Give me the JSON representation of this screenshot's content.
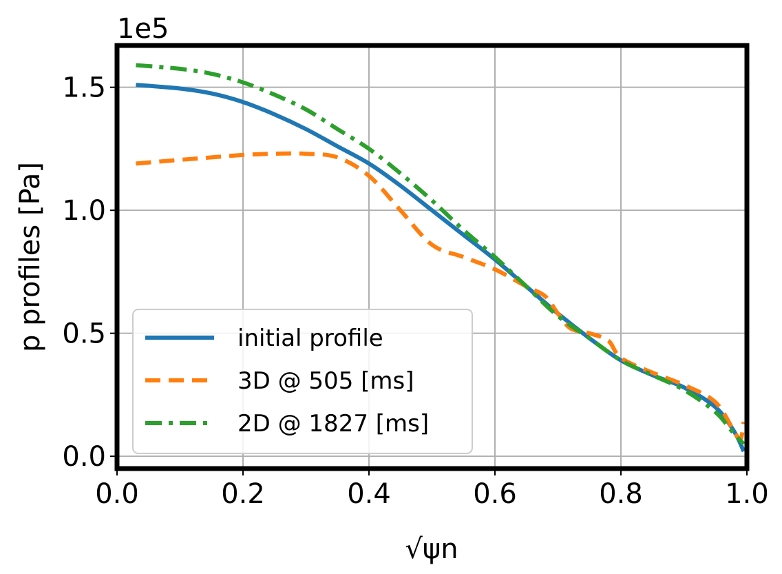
{
  "chart_data": {
    "type": "line",
    "title": "",
    "xlabel": "√ψn",
    "ylabel": "p profiles [Pa]",
    "y_offset_label": "1e5",
    "xlim": [
      0.0,
      1.0
    ],
    "ylim": [
      -0.05,
      1.67
    ],
    "x_ticks": [
      0.0,
      0.2,
      0.4,
      0.6,
      0.8,
      1.0
    ],
    "x_tick_labels": [
      "0.0",
      "0.2",
      "0.4",
      "0.6",
      "0.8",
      "1.0"
    ],
    "y_ticks": [
      0.0,
      0.5,
      1.0,
      1.5
    ],
    "y_tick_labels": [
      "0.0",
      "0.5",
      "1.0",
      "1.5"
    ],
    "y_scale_note": "values in units of 1e5 Pa",
    "grid": true,
    "legend_position": "lower-left",
    "series": [
      {
        "name": "initial profile",
        "color": "#1f77b4",
        "style": "solid",
        "x": [
          0.03,
          0.1,
          0.15,
          0.2,
          0.25,
          0.3,
          0.35,
          0.4,
          0.45,
          0.5,
          0.55,
          0.6,
          0.65,
          0.7,
          0.75,
          0.8,
          0.85,
          0.9,
          0.95,
          0.98,
          0.995
        ],
        "y": [
          1.51,
          1.495,
          1.475,
          1.44,
          1.39,
          1.33,
          1.26,
          1.19,
          1.1,
          1.0,
          0.9,
          0.8,
          0.69,
          0.58,
          0.48,
          0.39,
          0.33,
          0.28,
          0.2,
          0.1,
          0.02
        ]
      },
      {
        "name": "3D @ 505 [ms]",
        "color": "#ff7f0e",
        "style": "dashed",
        "x": [
          0.03,
          0.1,
          0.15,
          0.2,
          0.25,
          0.3,
          0.35,
          0.4,
          0.45,
          0.5,
          0.55,
          0.6,
          0.65,
          0.68,
          0.7,
          0.72,
          0.75,
          0.78,
          0.8,
          0.85,
          0.9,
          0.95,
          0.98,
          0.99,
          0.995
        ],
        "y": [
          1.19,
          1.205,
          1.215,
          1.225,
          1.23,
          1.23,
          1.215,
          1.14,
          1.0,
          0.86,
          0.81,
          0.76,
          0.69,
          0.65,
          0.58,
          0.52,
          0.5,
          0.47,
          0.4,
          0.34,
          0.29,
          0.22,
          0.1,
          0.07,
          0.14
        ]
      },
      {
        "name": "2D @ 1827 [ms]",
        "color": "#2ca02c",
        "style": "dashdot",
        "x": [
          0.03,
          0.1,
          0.15,
          0.2,
          0.25,
          0.3,
          0.35,
          0.4,
          0.45,
          0.5,
          0.55,
          0.6,
          0.65,
          0.7,
          0.75,
          0.8,
          0.85,
          0.9,
          0.95,
          0.98,
          0.995
        ],
        "y": [
          1.59,
          1.575,
          1.555,
          1.52,
          1.47,
          1.41,
          1.33,
          1.25,
          1.15,
          1.04,
          0.92,
          0.81,
          0.69,
          0.57,
          0.48,
          0.39,
          0.33,
          0.27,
          0.18,
          0.09,
          0.05
        ]
      }
    ]
  }
}
